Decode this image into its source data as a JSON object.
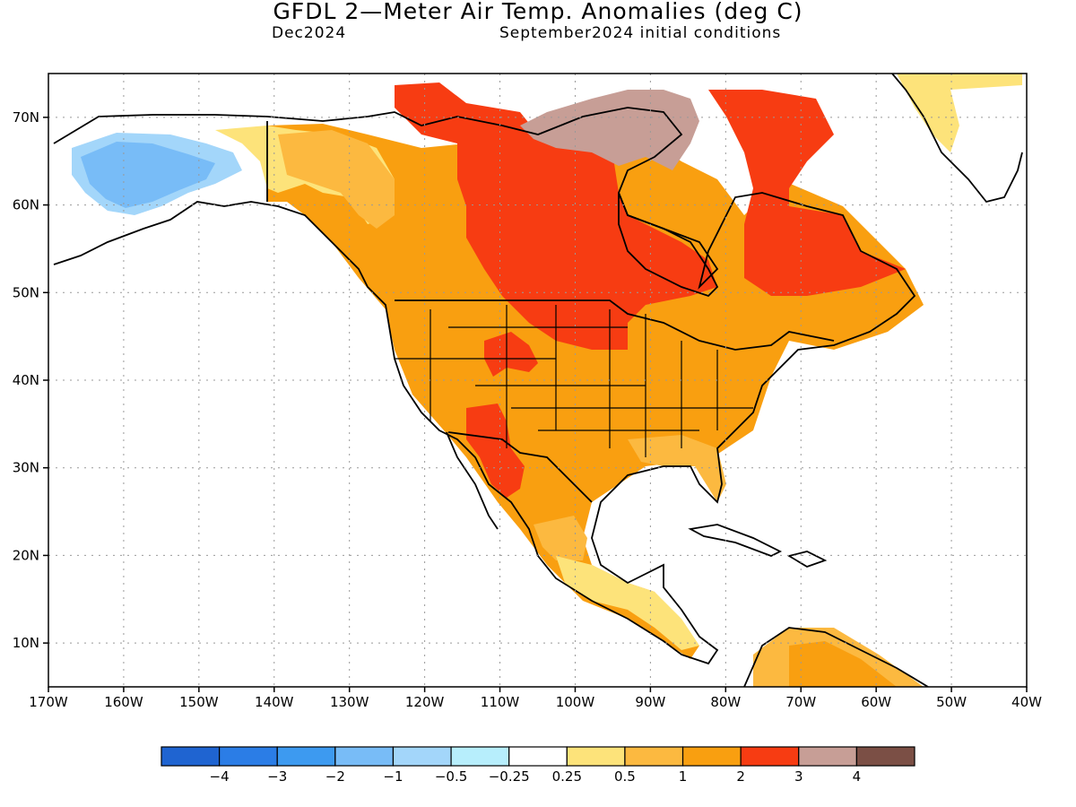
{
  "header": {
    "title": "GFDL 2—Meter Air Temp. Anomalies (deg C)",
    "valid_month": "Dec2024",
    "init": "September2024 initial conditions"
  },
  "axes": {
    "lat_labels": [
      "70N",
      "60N",
      "50N",
      "40N",
      "30N",
      "20N",
      "10N"
    ],
    "lon_labels": [
      "170W",
      "160W",
      "150W",
      "140W",
      "130W",
      "120W",
      "110W",
      "100W",
      "90W",
      "80W",
      "70W",
      "60W",
      "50W",
      "40W"
    ],
    "lat_range": [
      5,
      75
    ],
    "lon_range": [
      -170,
      -40
    ]
  },
  "legend": {
    "colors": [
      "#1f64d1",
      "#2b7de6",
      "#3d9af0",
      "#78bcf7",
      "#a3d6fa",
      "#b7eefc",
      "#ffffff",
      "#fde37a",
      "#fcb940",
      "#f99f10",
      "#f73c12",
      "#c79e96",
      "#7b4f45"
    ],
    "labels": [
      "−4",
      "−3",
      "−2",
      "−1",
      "−0.5",
      "−0.25",
      "0.25",
      "0.5",
      "1",
      "2",
      "3",
      "4"
    ]
  }
}
